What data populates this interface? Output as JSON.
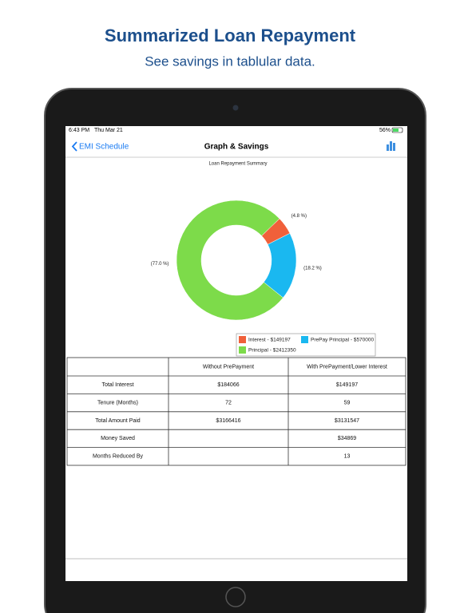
{
  "header": {
    "title": "Summarized Loan Repayment",
    "subtitle": "See savings in tablular  data."
  },
  "status_bar": {
    "time": "6:43 PM",
    "date": "Thu Mar 21",
    "battery": "56%"
  },
  "nav": {
    "back": "EMI Schedule",
    "title": "Graph & Savings"
  },
  "chart_data": {
    "type": "pie",
    "title": "Loan Repayment Summary",
    "categories": [
      "Interest - $149197",
      "PrePay Principal - $570000",
      "Principal - $2412350"
    ],
    "values": [
      4.8,
      18.2,
      77.0
    ],
    "value_labels": [
      "(4.8 %)",
      "(18.2 %)",
      "(77.0 %)"
    ],
    "colors": [
      "#f0603a",
      "#1ab8f0",
      "#7ddb4a"
    ],
    "donut": true
  },
  "table": {
    "columns": [
      "Without PrePayment",
      "With PrePayment/Lower Interest"
    ],
    "rows": [
      {
        "label": "Total Interest",
        "without": "$184066",
        "with": "$149197"
      },
      {
        "label": "Tenure (Months)",
        "without": "72",
        "with": "59"
      },
      {
        "label": "Total Amount Paid",
        "without": "$3166416",
        "with": "$3131547"
      },
      {
        "label": "Money Saved",
        "with": "$34869"
      },
      {
        "label": "Months Reduced By",
        "with": "13"
      }
    ]
  }
}
